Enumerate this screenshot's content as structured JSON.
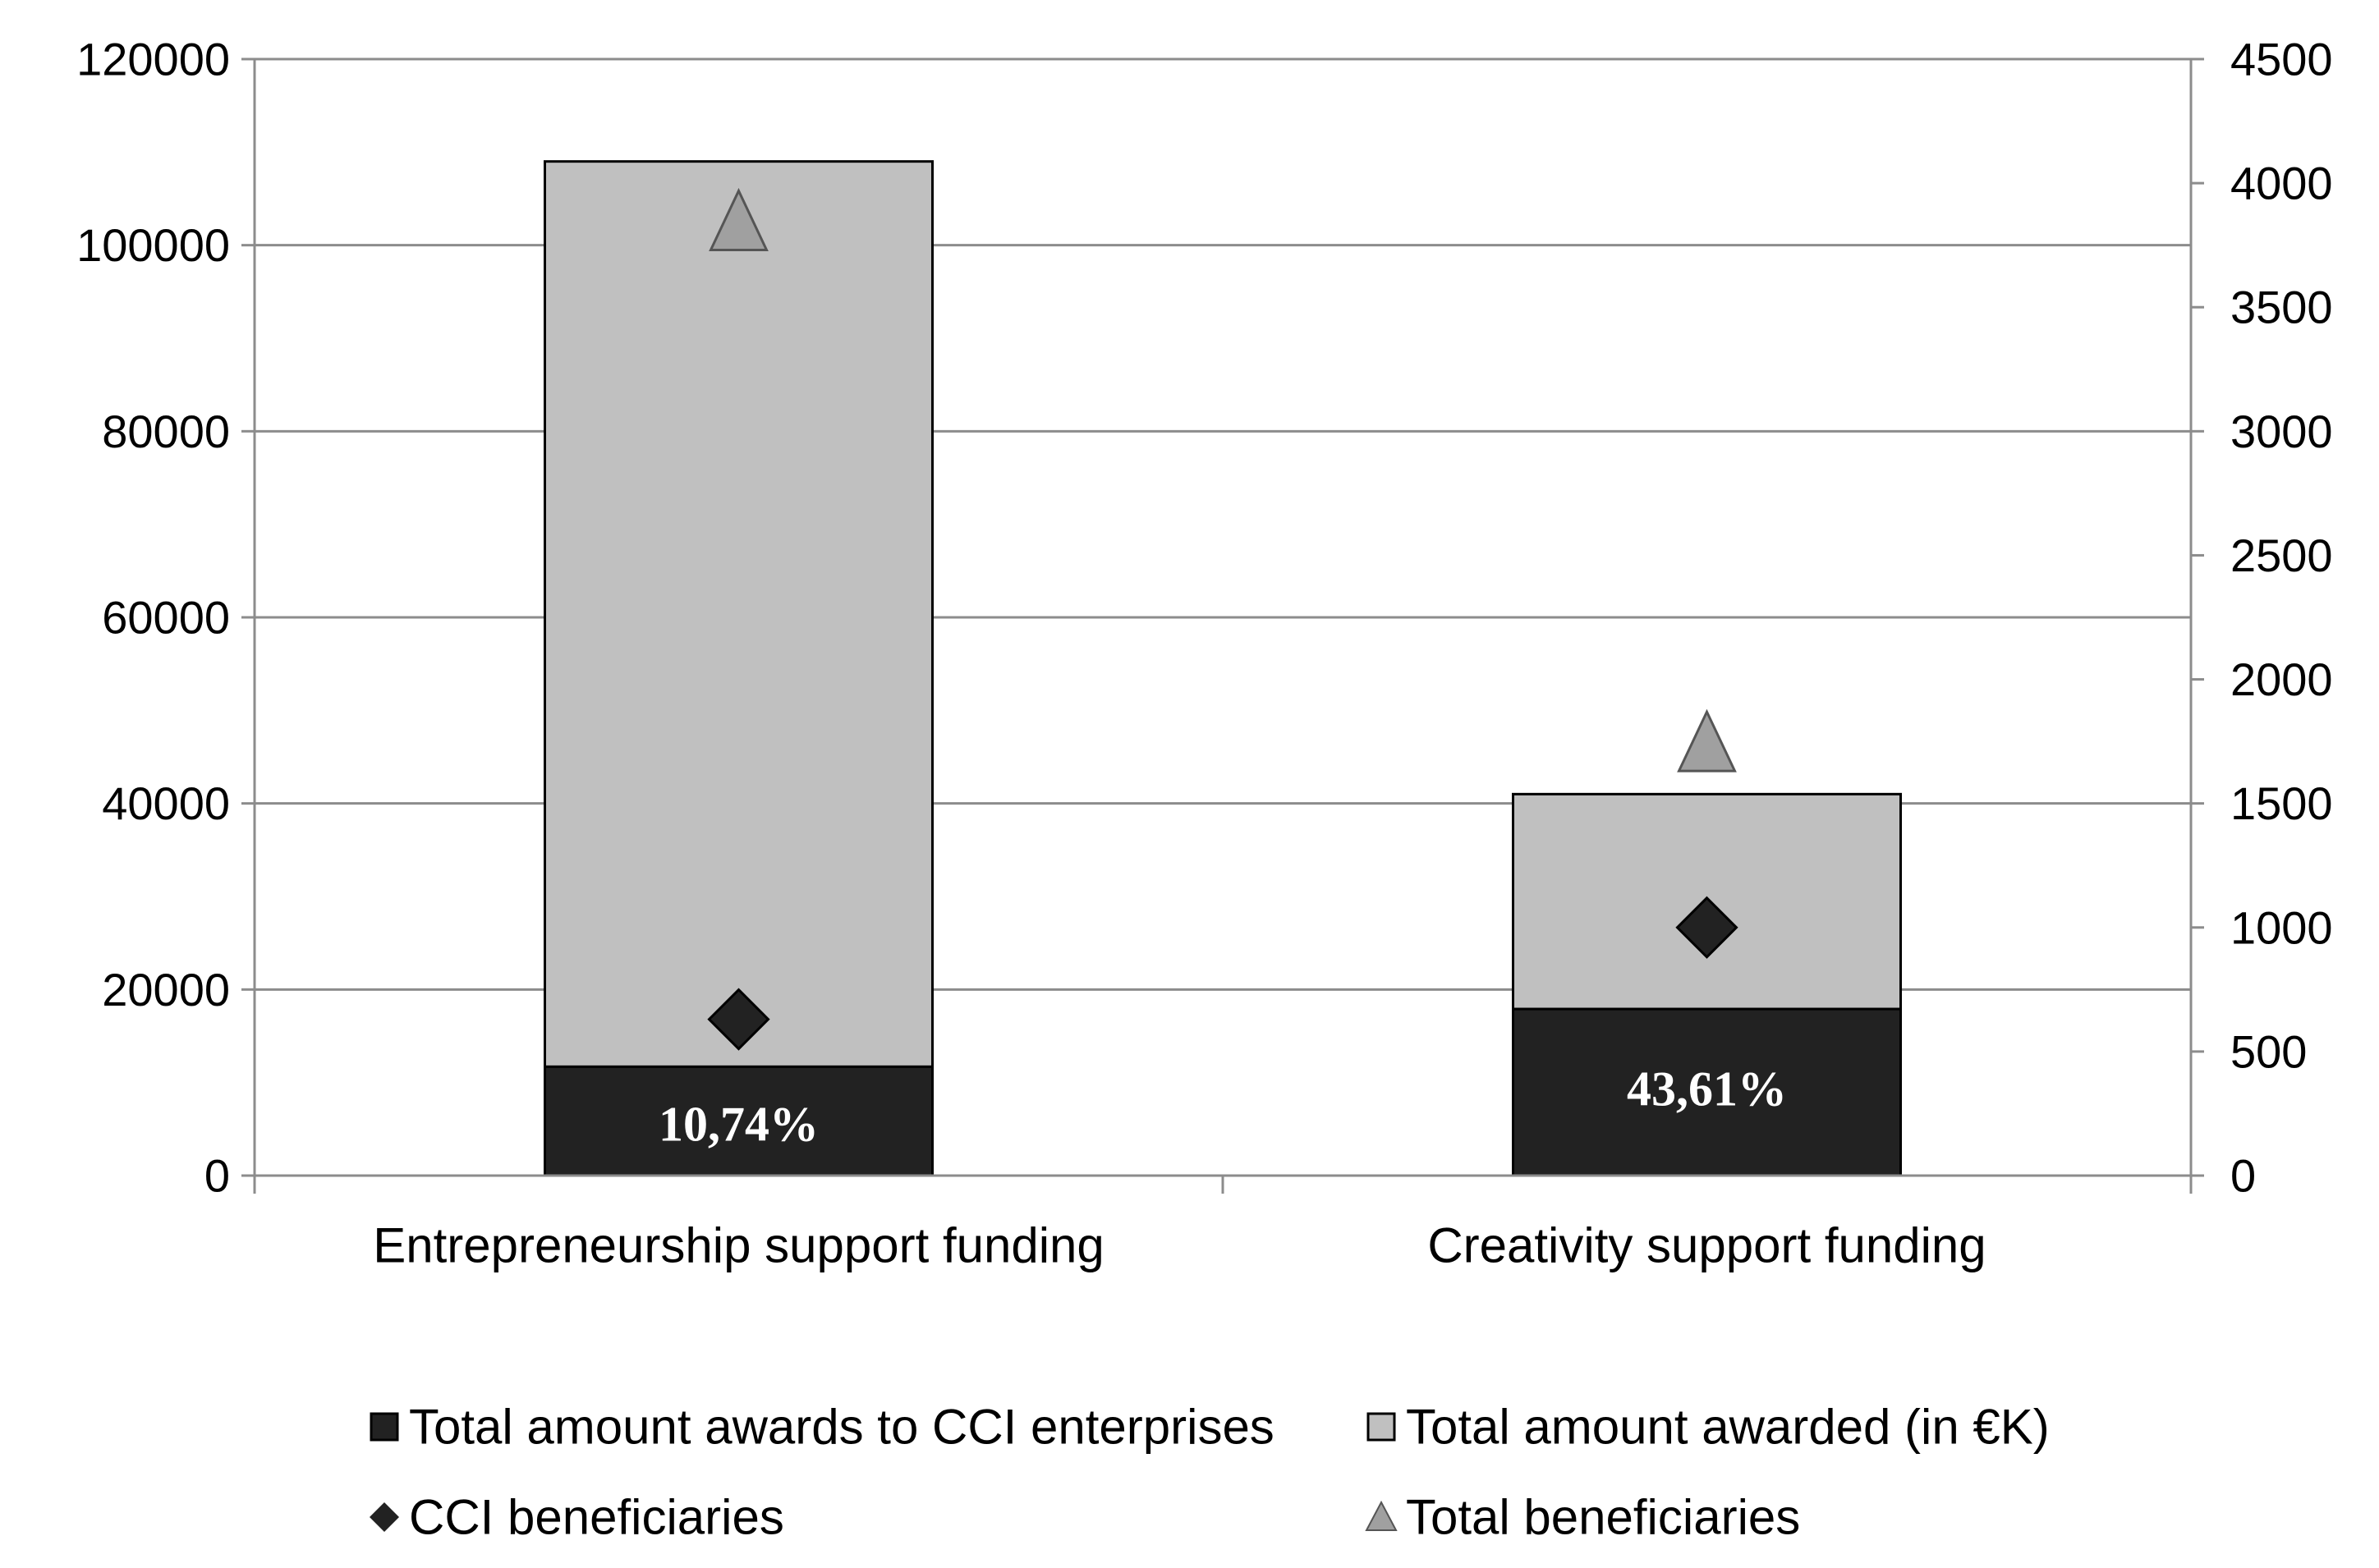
{
  "chart_data": {
    "type": "bar",
    "stacked": true,
    "categories": [
      "Entrepreneurship support funding",
      "Creativity support funding"
    ],
    "series": [
      {
        "name": "Total amount awards to CCI enterprises",
        "kind": "bar",
        "axis": "left",
        "color": "#222222",
        "values": [
          11700,
          17900
        ],
        "labels": [
          "10,74%",
          "43,61%"
        ]
      },
      {
        "name": "Total amount awarded (in €K)",
        "kind": "bar",
        "axis": "left",
        "color": "#c0c0c0",
        "totals": [
          109000,
          41000
        ]
      },
      {
        "name": "CCI beneficiaries",
        "kind": "marker",
        "marker": "diamond",
        "axis": "right",
        "color": "#222222",
        "values": [
          630,
          1000
        ]
      },
      {
        "name": "Total beneficiaries",
        "kind": "marker",
        "marker": "triangle",
        "axis": "right",
        "color": "#a0a0a0",
        "values": [
          3850,
          1750
        ]
      }
    ],
    "y_left": {
      "min": 0,
      "max": 120000,
      "ticks": [
        "0",
        "20000",
        "40000",
        "60000",
        "80000",
        "100000",
        "120000"
      ]
    },
    "y_right": {
      "min": 0,
      "max": 4500,
      "ticks": [
        "0",
        "500",
        "1000",
        "1500",
        "2000",
        "2500",
        "3000",
        "3500",
        "4000",
        "4500"
      ]
    },
    "grid": true,
    "legend_position": "bottom"
  }
}
